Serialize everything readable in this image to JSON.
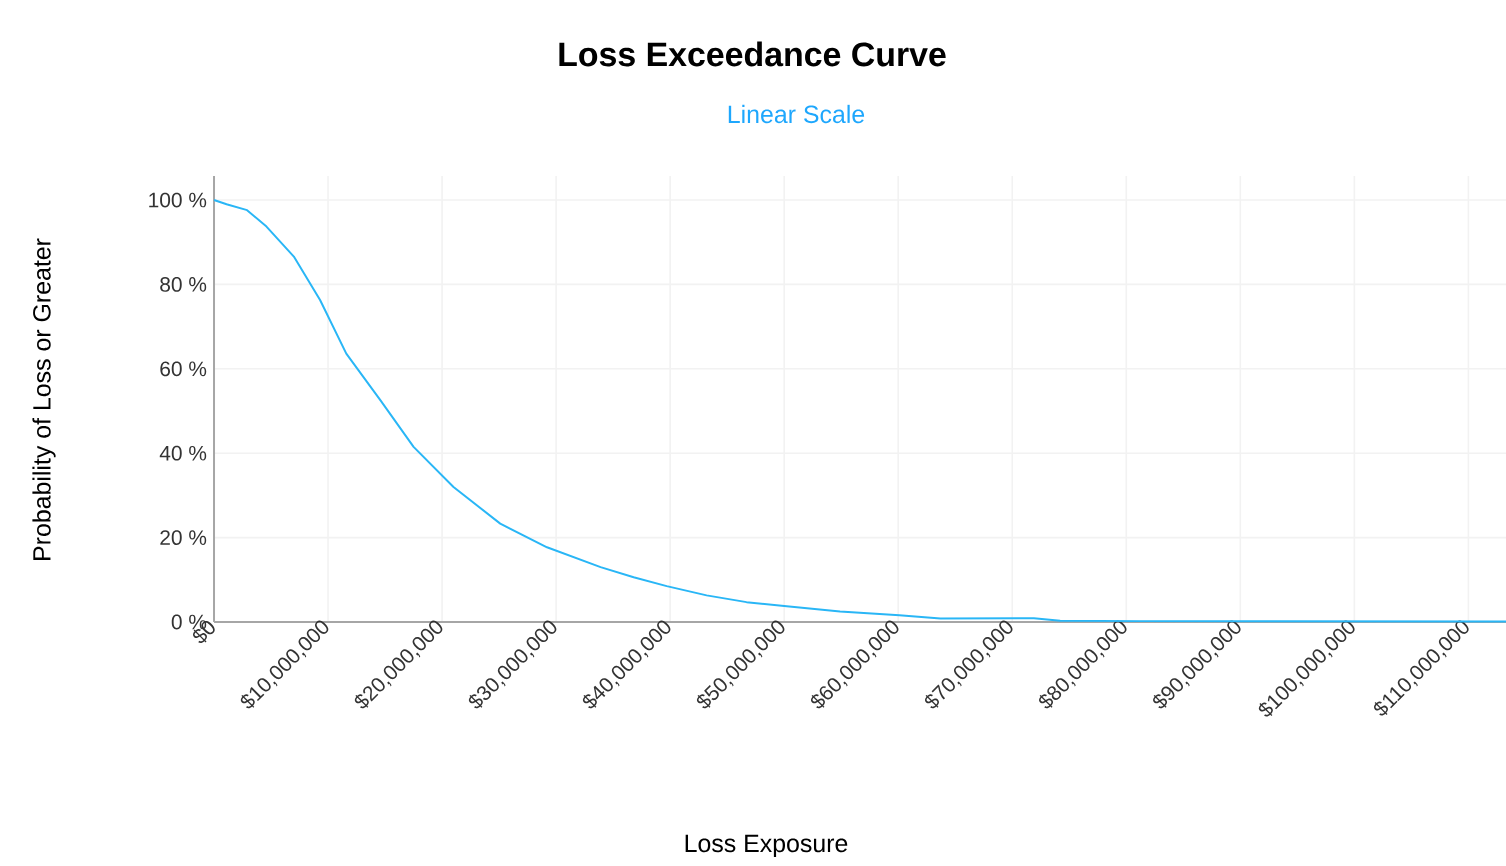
{
  "chart_data": {
    "type": "line",
    "title": "Loss Exceedance Curve",
    "subtitle": "Linear Scale",
    "xlabel": "Loss Exposure",
    "ylabel": "Probability of Loss or Greater",
    "x": [
      0,
      1100000,
      2900000,
      4600000,
      7000000,
      9300000,
      11600000,
      14600000,
      17500000,
      21000000,
      25100000,
      29200000,
      33900000,
      36800000,
      39700000,
      43200000,
      46700000,
      50000000,
      54900000,
      60100000,
      63700000,
      71900000,
      74200000,
      81200000,
      113300000
    ],
    "series": [
      {
        "color": "#29b6f6",
        "values": [
          100,
          99,
          97.6,
          93.7,
          86.6,
          76.3,
          63.6,
          52.5,
          41.5,
          32,
          23.3,
          17.7,
          13,
          10.6,
          8.5,
          6.3,
          4.7,
          3.8,
          2.5,
          1.6,
          0.8,
          0.9,
          0.3,
          0.2,
          0.1
        ]
      }
    ],
    "xlim": [
      0,
      113300000
    ],
    "xticks": [
      {
        "value": 0,
        "label": "$0"
      },
      {
        "value": 10000000,
        "label": "$10,000,000"
      },
      {
        "value": 20000000,
        "label": "$20,000,000"
      },
      {
        "value": 30000000,
        "label": "$30,000,000"
      },
      {
        "value": 40000000,
        "label": "$40,000,000"
      },
      {
        "value": 50000000,
        "label": "$50,000,000"
      },
      {
        "value": 60000000,
        "label": "$60,000,000"
      },
      {
        "value": 70000000,
        "label": "$70,000,000"
      },
      {
        "value": 80000000,
        "label": "$80,000,000"
      },
      {
        "value": 90000000,
        "label": "$90,000,000"
      },
      {
        "value": 100000000,
        "label": "$100,000,000"
      },
      {
        "value": 110000000,
        "label": "$110,000,000"
      }
    ],
    "ylim": [
      0,
      105.7
    ],
    "yticks": [
      {
        "value": 0,
        "label": "0 %"
      },
      {
        "value": 20,
        "label": "20 %"
      },
      {
        "value": 40,
        "label": "40 %"
      },
      {
        "value": 60,
        "label": "60 %"
      },
      {
        "value": 80,
        "label": "80 %"
      },
      {
        "value": 100,
        "label": "100 %"
      }
    ],
    "grid": true,
    "marker": "none",
    "line_style": "solid"
  }
}
